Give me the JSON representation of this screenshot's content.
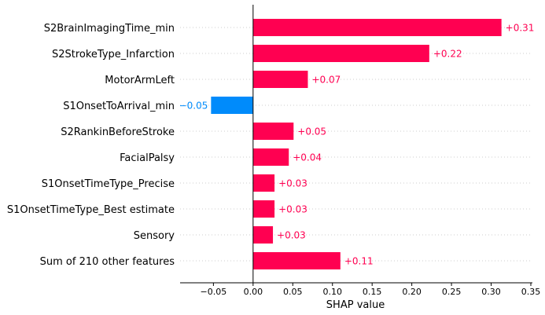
{
  "chart_data": {
    "type": "bar",
    "orientation": "horizontal",
    "xlabel": "SHAP value",
    "xlim": [
      -0.092,
      0.352
    ],
    "xticks": [
      -0.05,
      0.0,
      0.05,
      0.1,
      0.15,
      0.2,
      0.25,
      0.3,
      0.35
    ],
    "xtick_labels": [
      "−0.05",
      "0.00",
      "0.05",
      "0.10",
      "0.15",
      "0.20",
      "0.25",
      "0.30",
      "0.35"
    ],
    "grid": false,
    "row_guides": "dotted",
    "positive_color": "#ff0051",
    "negative_color": "#008bfb",
    "categories": [
      "S2BrainImagingTime_min",
      "S2StrokeType_Infarction",
      "MotorArmLeft",
      "S1OnsetToArrival_min",
      "S2RankinBeforeStroke",
      "FacialPalsy",
      "S1OnsetTimeType_Precise",
      "S1OnsetTimeType_Best estimate",
      "Sensory",
      "Sum of 210 other features"
    ],
    "values": [
      0.313,
      0.222,
      0.069,
      -0.053,
      0.051,
      0.045,
      0.027,
      0.027,
      0.025,
      0.11
    ],
    "value_labels": [
      "+0.31",
      "+0.22",
      "+0.07",
      "−0.05",
      "+0.05",
      "+0.04",
      "+0.03",
      "+0.03",
      "+0.03",
      "+0.11"
    ]
  }
}
